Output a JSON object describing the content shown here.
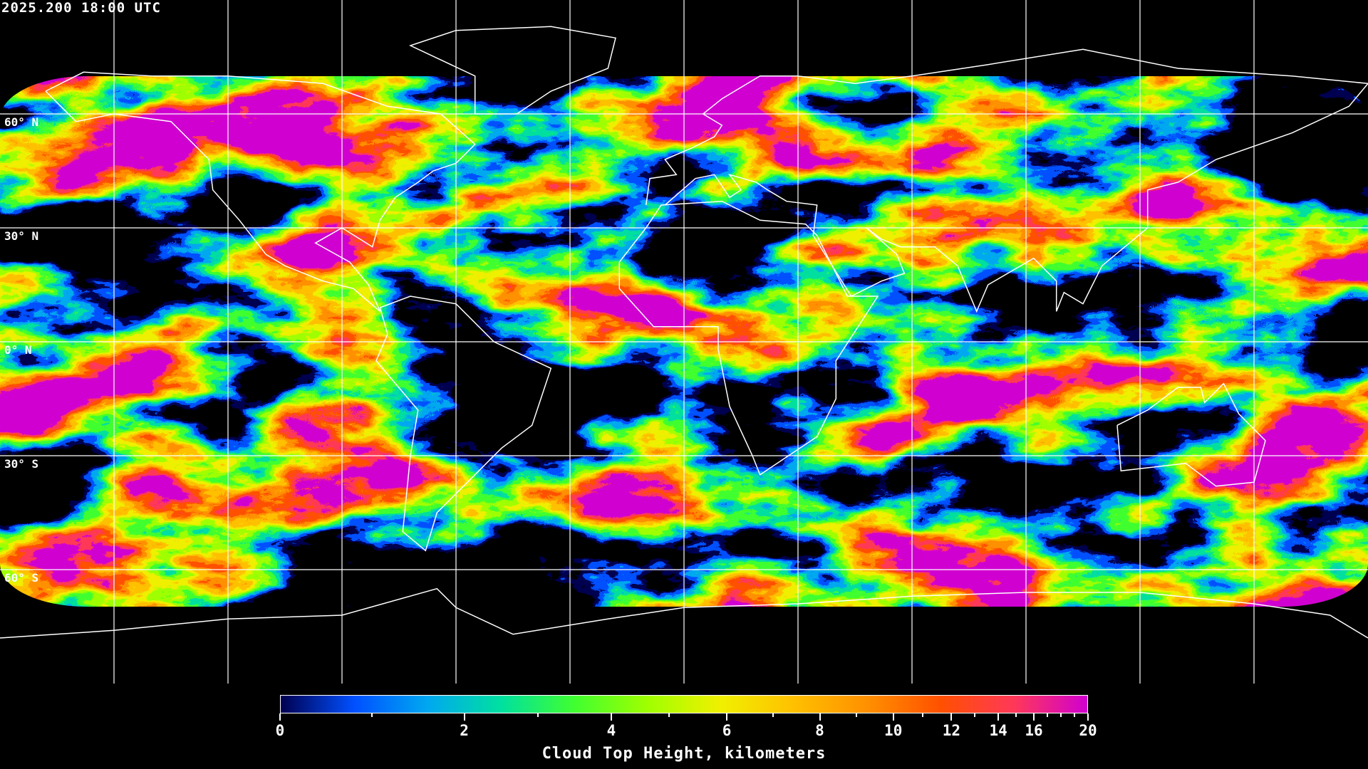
{
  "header": {
    "timestamp": "2025.200 18:00 UTC"
  },
  "map": {
    "projection": "equirectangular",
    "lon_range": [
      -180,
      180
    ],
    "lat_range": [
      -90,
      90
    ],
    "grid_spacing_deg": 30,
    "data_coverage_lat": [
      -70,
      70
    ],
    "gridline_color": "#ffffff",
    "coastline_color": "#ffffff",
    "lat_labels": [
      {
        "lat": 60,
        "label": "60° N"
      },
      {
        "lat": 30,
        "label": "30° N"
      },
      {
        "lat": 0,
        "label": "0° N"
      },
      {
        "lat": -30,
        "label": "30° S"
      },
      {
        "lat": -60,
        "label": "60° S"
      }
    ]
  },
  "colorbar": {
    "title": "Cloud Top Height, kilometers",
    "range": [
      0,
      20
    ],
    "major_ticks": [
      {
        "value": 0,
        "label": "0"
      },
      {
        "value": 2,
        "label": "2"
      },
      {
        "value": 4,
        "label": "4"
      },
      {
        "value": 6,
        "label": "6"
      },
      {
        "value": 8,
        "label": "8"
      },
      {
        "value": 10,
        "label": "10"
      },
      {
        "value": 12,
        "label": "12"
      },
      {
        "value": 14,
        "label": "14"
      },
      {
        "value": 16,
        "label": "16"
      },
      {
        "value": 20,
        "label": "20"
      }
    ],
    "minor_ticks": [
      1,
      3,
      5,
      7,
      9,
      11,
      13,
      15,
      17,
      18,
      19
    ],
    "colormap": [
      "#000050",
      "#0050ff",
      "#00a8f0",
      "#00e0a0",
      "#40ff30",
      "#a0ff00",
      "#f0f000",
      "#ffc000",
      "#ff9000",
      "#ff5000",
      "#ff3858",
      "#d000d0"
    ]
  }
}
